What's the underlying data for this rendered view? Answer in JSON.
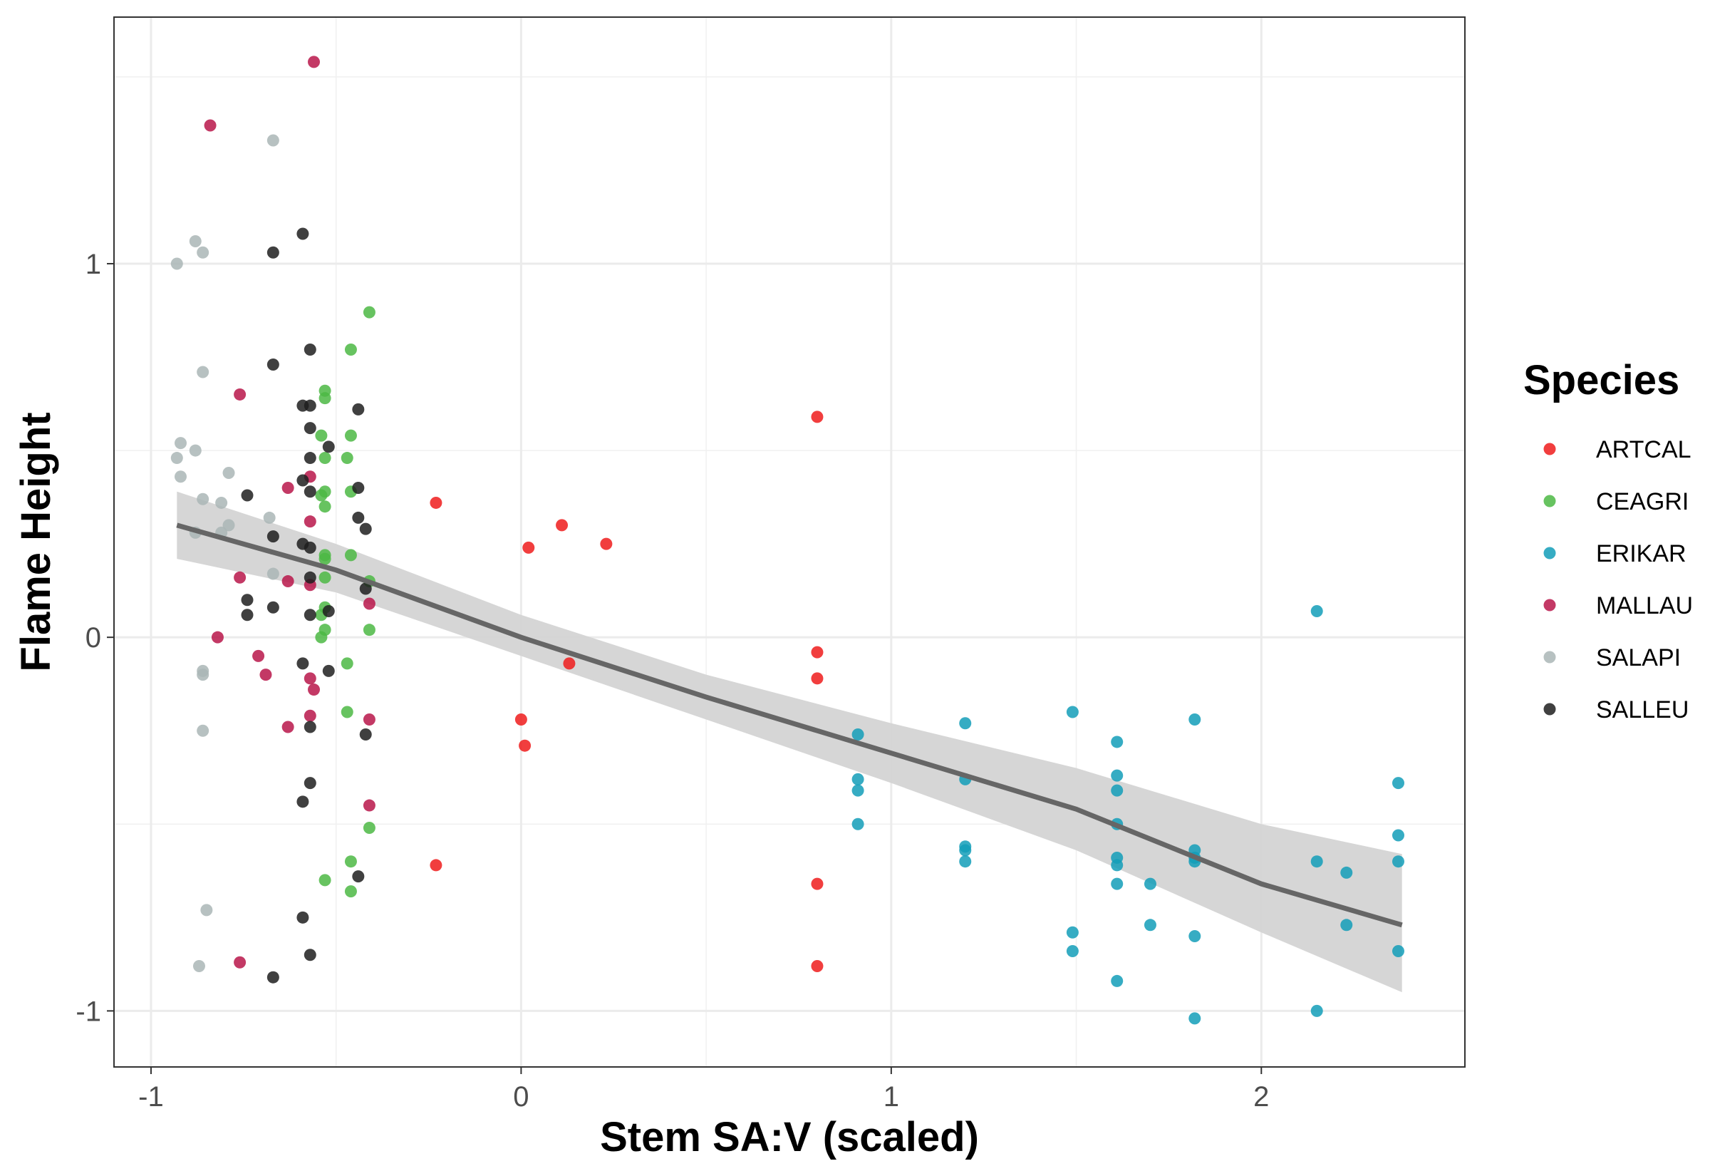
{
  "chart_data": {
    "type": "scatter",
    "xlabel": "Stem SA:V (scaled)",
    "ylabel": "Flame Height",
    "xlim": [
      -1.1,
      2.55
    ],
    "ylim": [
      -1.15,
      1.66
    ],
    "x_ticks": [
      {
        "value": -1,
        "label": "-1"
      },
      {
        "value": 0,
        "label": "0"
      },
      {
        "value": 1,
        "label": "1"
      },
      {
        "value": 2,
        "label": "2"
      }
    ],
    "y_ticks": [
      {
        "value": -1,
        "label": "-1"
      },
      {
        "value": 0,
        "label": "0"
      },
      {
        "value": 1,
        "label": "1"
      }
    ],
    "grid": true,
    "legend": {
      "title": "Species",
      "placement": "right"
    },
    "series": [
      {
        "name": "ARTCAL",
        "color": "#ee1c1c",
        "points": [
          [
            -0.23,
            0.36
          ],
          [
            0.02,
            0.24
          ],
          [
            0.11,
            0.3
          ],
          [
            0.23,
            0.25
          ],
          [
            0.13,
            -0.07
          ],
          [
            0.0,
            -0.22
          ],
          [
            0.01,
            -0.29
          ],
          [
            -0.23,
            -0.61
          ],
          [
            0.8,
            0.59
          ],
          [
            0.8,
            -0.04
          ],
          [
            0.8,
            -0.11
          ],
          [
            0.8,
            -0.66
          ],
          [
            0.8,
            -0.88
          ]
        ]
      },
      {
        "name": "CEAGRI",
        "color": "#4cb944",
        "points": [
          [
            -0.41,
            0.87
          ],
          [
            -0.46,
            0.77
          ],
          [
            -0.53,
            0.66
          ],
          [
            -0.53,
            0.64
          ],
          [
            -0.46,
            0.54
          ],
          [
            -0.54,
            0.54
          ],
          [
            -0.47,
            0.48
          ],
          [
            -0.53,
            0.48
          ],
          [
            -0.46,
            0.39
          ],
          [
            -0.53,
            0.39
          ],
          [
            -0.54,
            0.38
          ],
          [
            -0.53,
            0.35
          ],
          [
            -0.46,
            0.22
          ],
          [
            -0.53,
            0.22
          ],
          [
            -0.53,
            0.21
          ],
          [
            -0.41,
            0.15
          ],
          [
            -0.53,
            0.16
          ],
          [
            -0.53,
            0.08
          ],
          [
            -0.54,
            0.06
          ],
          [
            -0.53,
            0.02
          ],
          [
            -0.41,
            0.02
          ],
          [
            -0.54,
            0.0
          ],
          [
            -0.47,
            -0.07
          ],
          [
            -0.47,
            -0.2
          ],
          [
            -0.41,
            -0.51
          ],
          [
            -0.46,
            -0.6
          ],
          [
            -0.53,
            -0.65
          ],
          [
            -0.46,
            -0.68
          ]
        ]
      },
      {
        "name": "ERIKAR",
        "color": "#139db9",
        "points": [
          [
            0.91,
            -0.26
          ],
          [
            0.91,
            -0.38
          ],
          [
            0.91,
            -0.41
          ],
          [
            0.91,
            -0.5
          ],
          [
            1.2,
            -0.23
          ],
          [
            1.2,
            -0.38
          ],
          [
            1.2,
            -0.56
          ],
          [
            1.2,
            -0.57
          ],
          [
            1.2,
            -0.6
          ],
          [
            1.49,
            -0.2
          ],
          [
            1.49,
            -0.79
          ],
          [
            1.49,
            -0.84
          ],
          [
            1.61,
            -0.28
          ],
          [
            1.61,
            -0.37
          ],
          [
            1.61,
            -0.41
          ],
          [
            1.61,
            -0.5
          ],
          [
            1.61,
            -0.59
          ],
          [
            1.61,
            -0.61
          ],
          [
            1.61,
            -0.66
          ],
          [
            1.61,
            -0.92
          ],
          [
            1.7,
            -0.66
          ],
          [
            1.7,
            -0.77
          ],
          [
            1.82,
            -0.22
          ],
          [
            1.82,
            -0.57
          ],
          [
            1.82,
            -0.59
          ],
          [
            1.82,
            -0.6
          ],
          [
            1.82,
            -0.8
          ],
          [
            1.82,
            -1.02
          ],
          [
            2.15,
            0.07
          ],
          [
            2.15,
            -0.6
          ],
          [
            2.15,
            -1.0
          ],
          [
            2.23,
            -0.63
          ],
          [
            2.23,
            -0.77
          ],
          [
            2.37,
            -0.39
          ],
          [
            2.37,
            -0.53
          ],
          [
            2.37,
            -0.6
          ],
          [
            2.37,
            -0.84
          ]
        ]
      },
      {
        "name": "MALLAU",
        "color": "#b8164a",
        "points": [
          [
            -0.56,
            1.54
          ],
          [
            -0.84,
            1.37
          ],
          [
            -0.76,
            0.65
          ],
          [
            -0.57,
            0.43
          ],
          [
            -0.63,
            0.4
          ],
          [
            -0.57,
            0.31
          ],
          [
            -0.76,
            0.16
          ],
          [
            -0.63,
            0.15
          ],
          [
            -0.57,
            0.14
          ],
          [
            -0.41,
            0.09
          ],
          [
            -0.82,
            0.0
          ],
          [
            -0.71,
            -0.05
          ],
          [
            -0.69,
            -0.1
          ],
          [
            -0.57,
            -0.11
          ],
          [
            -0.56,
            -0.14
          ],
          [
            -0.57,
            -0.21
          ],
          [
            -0.41,
            -0.22
          ],
          [
            -0.63,
            -0.24
          ],
          [
            -0.41,
            -0.45
          ],
          [
            -0.76,
            -0.87
          ]
        ]
      },
      {
        "name": "SALAPI",
        "color": "#aab6b6",
        "points": [
          [
            -0.67,
            1.33
          ],
          [
            -0.88,
            1.06
          ],
          [
            -0.86,
            1.03
          ],
          [
            -0.93,
            1.0
          ],
          [
            -0.86,
            0.71
          ],
          [
            -0.92,
            0.52
          ],
          [
            -0.88,
            0.5
          ],
          [
            -0.93,
            0.48
          ],
          [
            -0.92,
            0.43
          ],
          [
            -0.79,
            0.44
          ],
          [
            -0.86,
            0.37
          ],
          [
            -0.81,
            0.36
          ],
          [
            -0.68,
            0.32
          ],
          [
            -0.79,
            0.3
          ],
          [
            -0.88,
            0.28
          ],
          [
            -0.81,
            0.28
          ],
          [
            -0.67,
            0.17
          ],
          [
            -0.86,
            -0.09
          ],
          [
            -0.86,
            -0.1
          ],
          [
            -0.86,
            -0.25
          ],
          [
            -0.85,
            -0.73
          ],
          [
            -0.87,
            -0.88
          ]
        ]
      },
      {
        "name": "SALLEU",
        "color": "#1e1e1e",
        "points": [
          [
            -0.59,
            1.08
          ],
          [
            -0.67,
            1.03
          ],
          [
            -0.57,
            0.77
          ],
          [
            -0.67,
            0.73
          ],
          [
            -0.59,
            0.62
          ],
          [
            -0.57,
            0.62
          ],
          [
            -0.44,
            0.61
          ],
          [
            -0.57,
            0.56
          ],
          [
            -0.52,
            0.51
          ],
          [
            -0.57,
            0.48
          ],
          [
            -0.59,
            0.42
          ],
          [
            -0.44,
            0.4
          ],
          [
            -0.57,
            0.39
          ],
          [
            -0.74,
            0.38
          ],
          [
            -0.44,
            0.32
          ],
          [
            -0.42,
            0.29
          ],
          [
            -0.67,
            0.27
          ],
          [
            -0.59,
            0.25
          ],
          [
            -0.57,
            0.24
          ],
          [
            -0.57,
            0.16
          ],
          [
            -0.42,
            0.13
          ],
          [
            -0.74,
            0.1
          ],
          [
            -0.67,
            0.08
          ],
          [
            -0.52,
            0.07
          ],
          [
            -0.57,
            0.06
          ],
          [
            -0.74,
            0.06
          ],
          [
            -0.59,
            -0.07
          ],
          [
            -0.52,
            -0.09
          ],
          [
            -0.57,
            -0.24
          ],
          [
            -0.42,
            -0.26
          ],
          [
            -0.57,
            -0.39
          ],
          [
            -0.59,
            -0.44
          ],
          [
            -0.44,
            -0.64
          ],
          [
            -0.59,
            -0.75
          ],
          [
            -0.57,
            -0.85
          ],
          [
            -0.67,
            -0.91
          ]
        ]
      }
    ],
    "trend": {
      "color": "#666666",
      "band_color": "#d4d4d4",
      "x": [
        -0.93,
        -0.5,
        0.0,
        0.5,
        1.0,
        1.5,
        2.0,
        2.38
      ],
      "y": [
        0.3,
        0.18,
        0.0,
        -0.16,
        -0.31,
        -0.46,
        -0.66,
        -0.77
      ],
      "lower": [
        0.21,
        0.12,
        -0.05,
        -0.22,
        -0.39,
        -0.57,
        -0.79,
        -0.95
      ],
      "upper": [
        0.39,
        0.25,
        0.06,
        -0.1,
        -0.23,
        -0.35,
        -0.5,
        -0.58
      ]
    }
  }
}
